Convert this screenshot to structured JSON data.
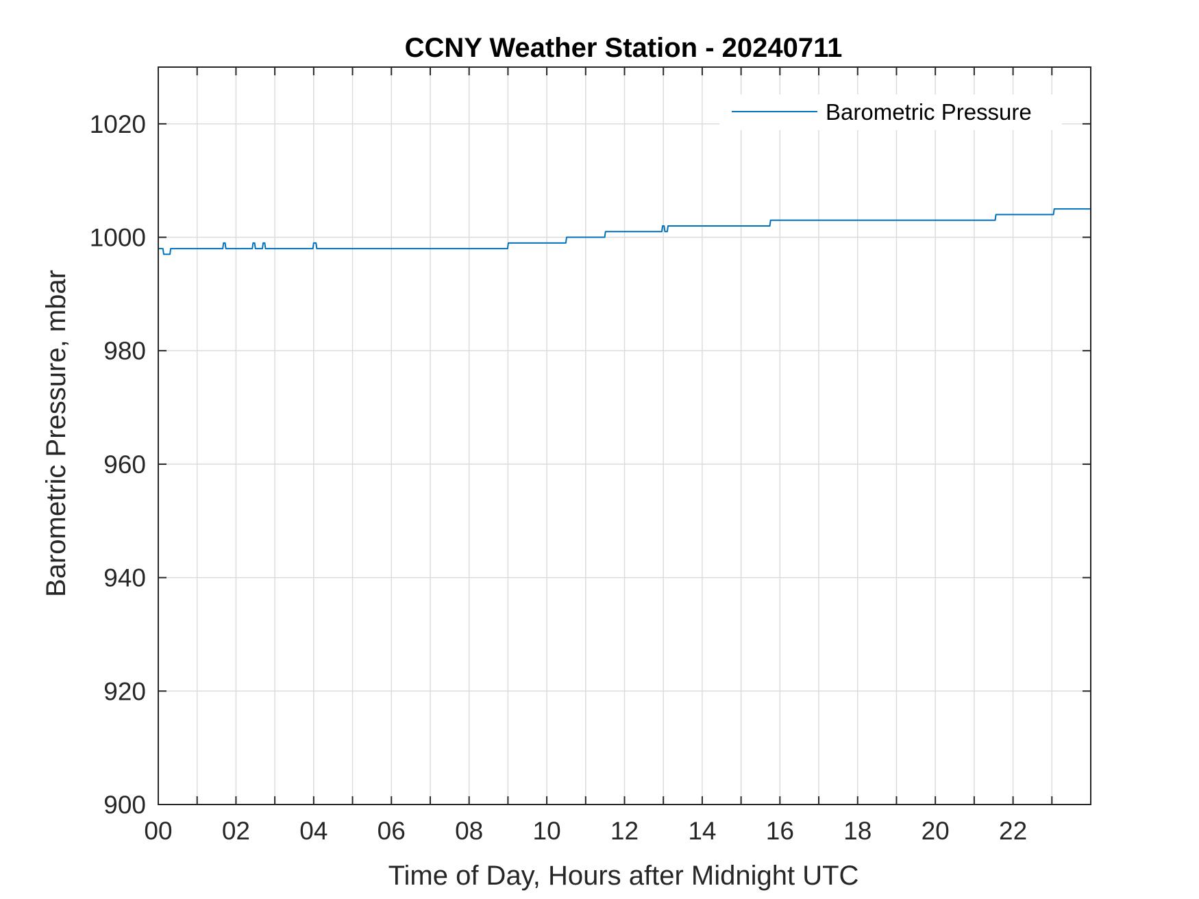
{
  "chart_data": {
    "type": "line",
    "title": "CCNY Weather Station - 20240711",
    "xlabel": "Time of Day, Hours after Midnight UTC",
    "ylabel": "Barometric Pressure, mbar",
    "xlim": [
      0,
      24
    ],
    "ylim": [
      900,
      1030
    ],
    "xticks": [
      0,
      2,
      4,
      6,
      8,
      10,
      12,
      14,
      16,
      18,
      20,
      22
    ],
    "xtick_labels": [
      "00",
      "02",
      "04",
      "06",
      "08",
      "10",
      "12",
      "14",
      "16",
      "18",
      "20",
      "22"
    ],
    "yticks": [
      900,
      920,
      940,
      960,
      980,
      1000,
      1020
    ],
    "ytick_labels": [
      "900",
      "920",
      "940",
      "960",
      "980",
      "1000",
      "1020"
    ],
    "grid": true,
    "minor_x_grid_step": 1,
    "legend_position": "top-right",
    "series": [
      {
        "name": "Barometric Pressure",
        "color": "#0072BD",
        "x": [
          0,
          0.12,
          0.14,
          0.3,
          0.32,
          1.66,
          1.68,
          1.72,
          1.74,
          2.42,
          2.44,
          2.48,
          2.5,
          2.68,
          2.7,
          2.74,
          2.76,
          3.98,
          4.0,
          4.06,
          4.08,
          8.99,
          9.01,
          10.49,
          10.51,
          11.49,
          11.51,
          12.96,
          12.98,
          13.02,
          13.04,
          13.1,
          13.12,
          15.74,
          15.76,
          21.54,
          21.56,
          23.04,
          23.06,
          24.0
        ],
        "y": [
          998,
          998,
          997,
          997,
          998,
          998,
          999,
          999,
          998,
          998,
          999,
          999,
          998,
          998,
          999,
          999,
          998,
          998,
          999,
          999,
          998,
          998,
          999,
          999,
          1000,
          1000,
          1001,
          1001,
          1002,
          1002,
          1001,
          1001,
          1002,
          1002,
          1003,
          1003,
          1004,
          1004,
          1005,
          1005
        ]
      }
    ]
  }
}
